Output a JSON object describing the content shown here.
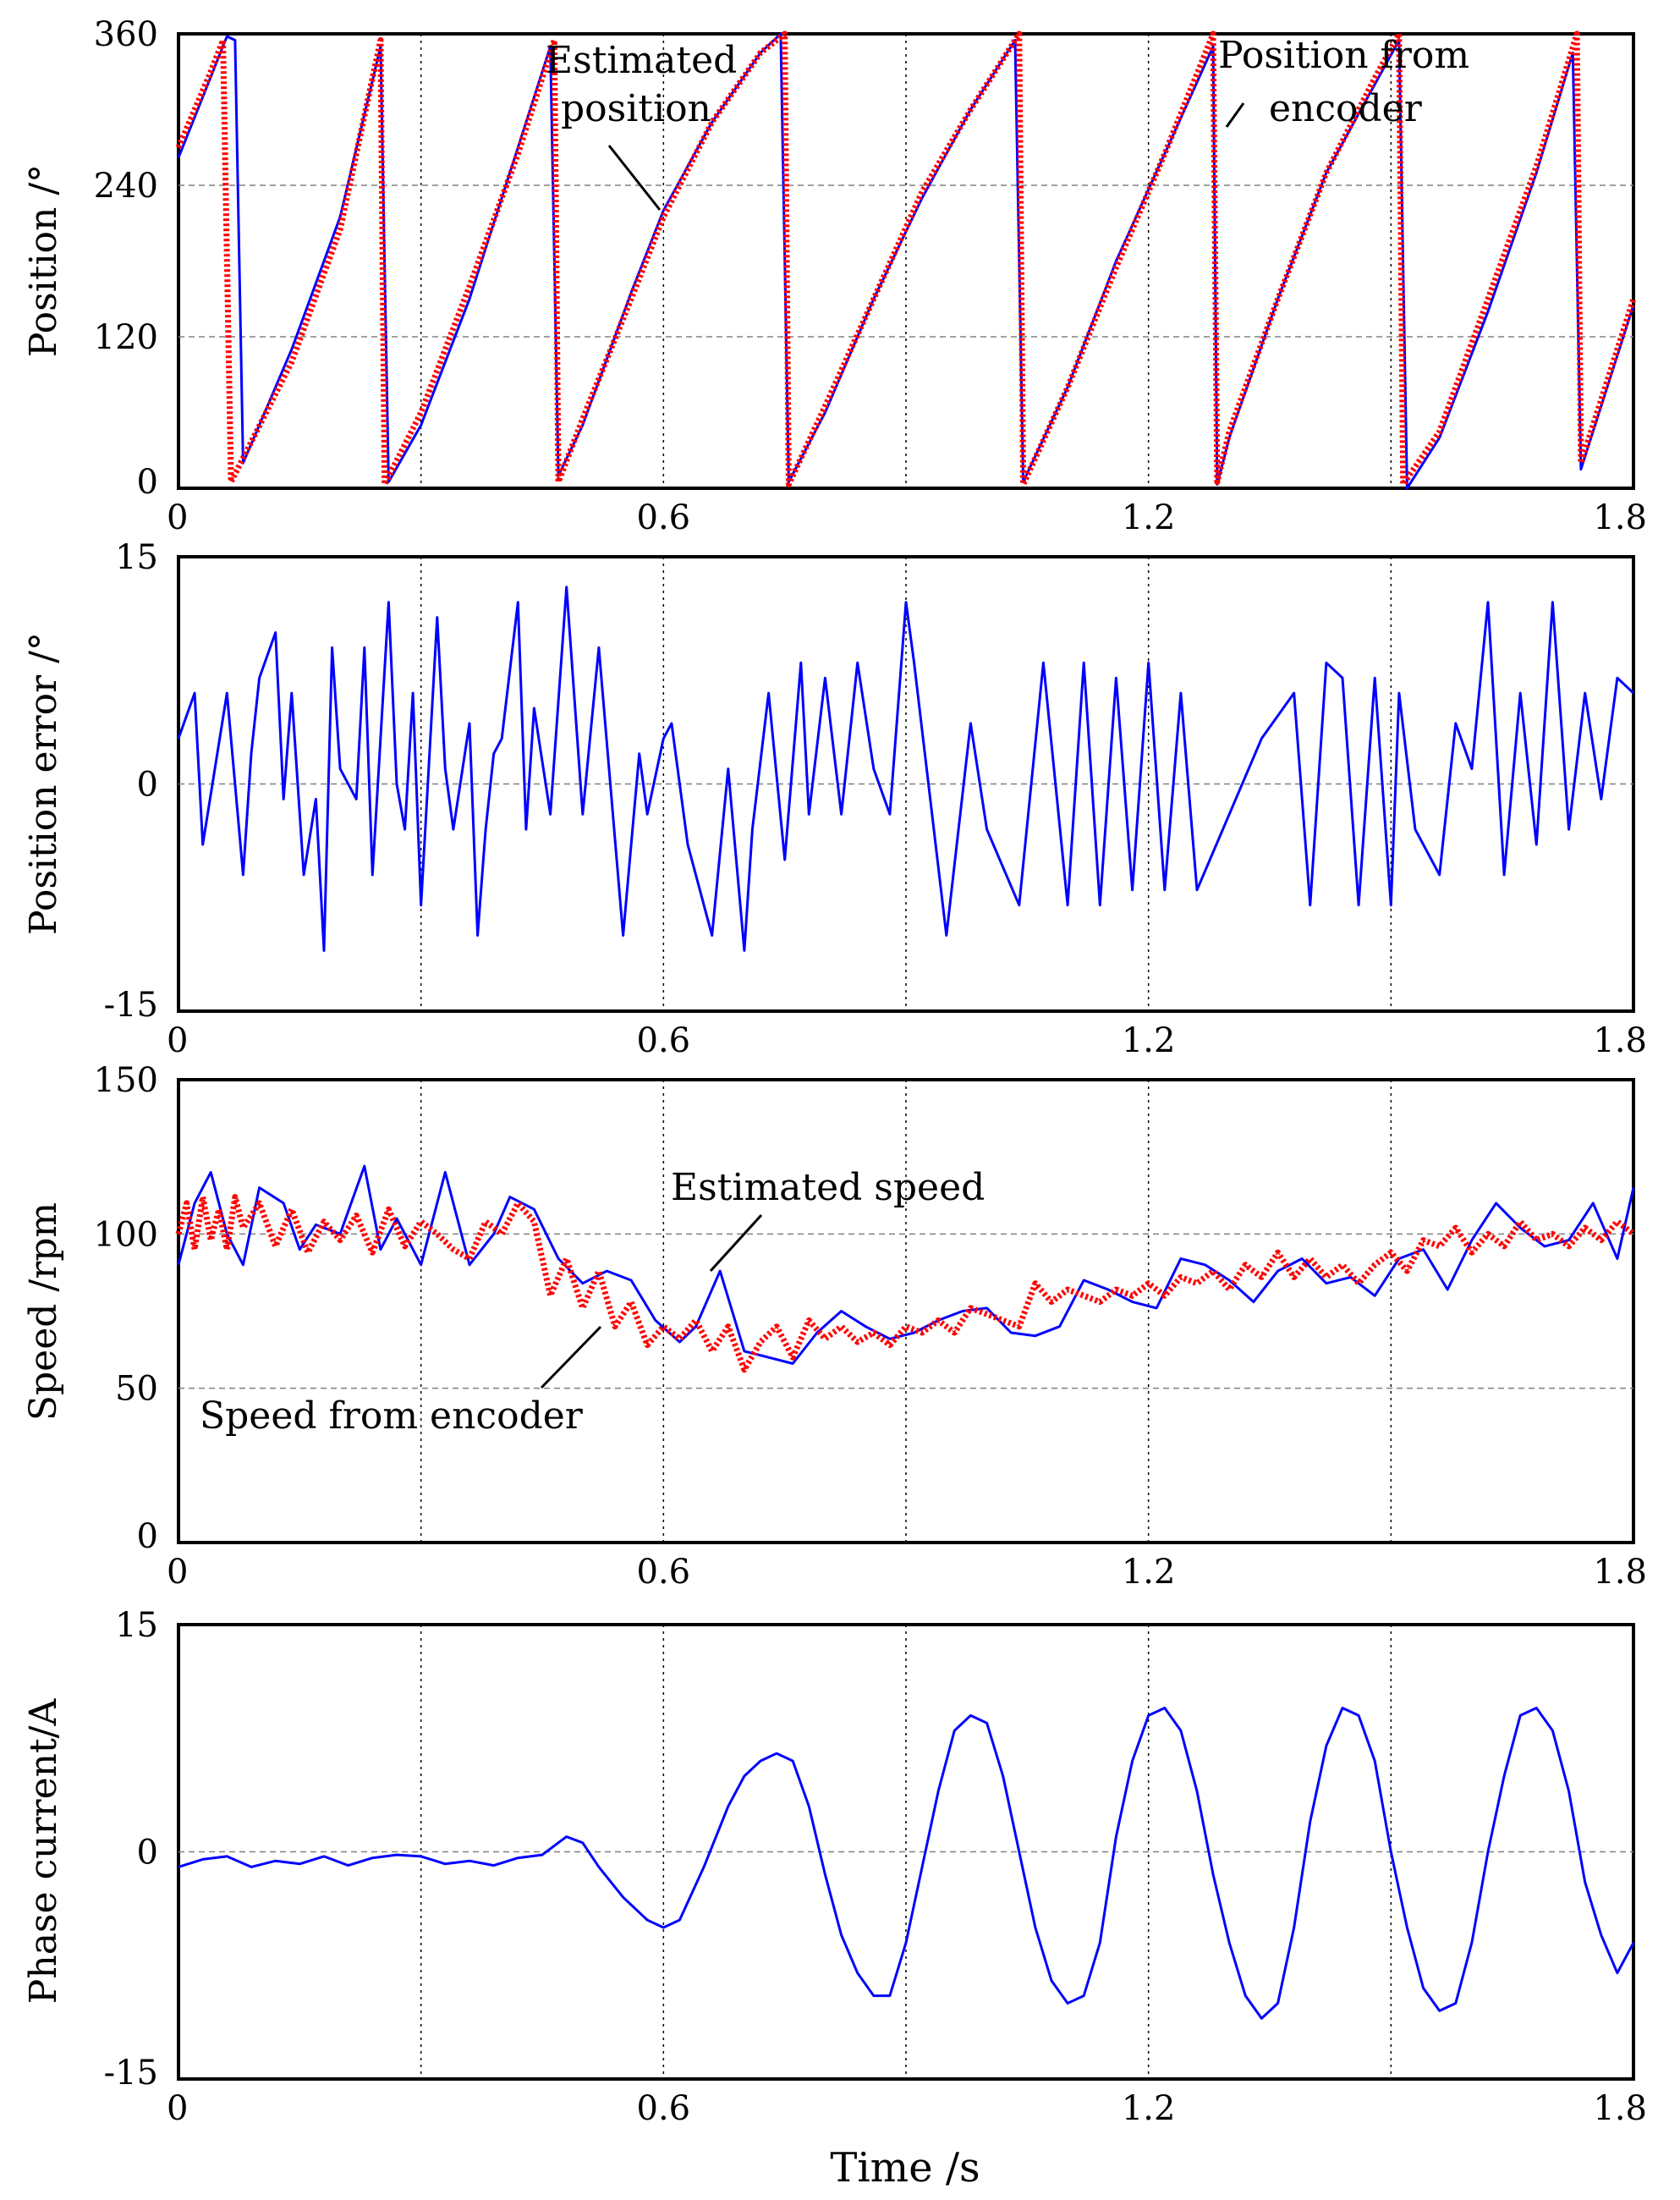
{
  "figure": {
    "xlabel": "Time /s",
    "colors": {
      "estimated": "#0000ff",
      "encoder": "#ff0000",
      "grid": "#808080",
      "frame": "#000000"
    }
  },
  "chart_data": [
    {
      "type": "line",
      "ylabel": "Position /°",
      "xlim": [
        0,
        1.8
      ],
      "ylim": [
        0,
        360
      ],
      "xticks": [
        0,
        0.6,
        1.2,
        1.8
      ],
      "xtick_labels": [
        "0",
        "0.6",
        "1.2",
        "1.8"
      ],
      "yticks": [
        0,
        120,
        240,
        360
      ],
      "ytick_labels": [
        "0",
        "120",
        "240",
        "360"
      ],
      "xgrid": [
        0.3,
        0.6,
        0.9,
        1.2,
        1.5
      ],
      "ygrid": [
        120,
        240
      ],
      "series": [
        {
          "name": "Estimated position",
          "color": "#0000ff",
          "dash": "solid",
          "x": [
            0,
            0.03,
            0.06,
            0.07,
            0.08,
            0.14,
            0.2,
            0.25,
            0.26,
            0.3,
            0.36,
            0.42,
            0.46,
            0.47,
            0.5,
            0.56,
            0.6,
            0.66,
            0.72,
            0.745,
            0.755,
            0.8,
            0.86,
            0.92,
            0.98,
            1.035,
            1.045,
            1.1,
            1.16,
            1.22,
            1.28,
            1.285,
            1.3,
            1.36,
            1.42,
            1.48,
            1.51,
            1.52,
            1.56,
            1.62,
            1.68,
            1.725,
            1.735,
            1.8
          ],
          "values": [
            262,
            310,
            358,
            355,
            20,
            110,
            215,
            350,
            5,
            50,
            150,
            270,
            350,
            10,
            50,
            155,
            220,
            290,
            345,
            360,
            5,
            60,
            150,
            230,
            300,
            355,
            5,
            80,
            180,
            265,
            350,
            3,
            40,
            150,
            250,
            320,
            355,
            0,
            40,
            140,
            250,
            345,
            15,
            145
          ]
        },
        {
          "name": "Position from encoder",
          "color": "#ff0000",
          "dash": "dotted",
          "x": [
            0,
            0.04,
            0.055,
            0.065,
            0.14,
            0.2,
            0.25,
            0.255,
            0.3,
            0.36,
            0.42,
            0.465,
            0.47,
            0.5,
            0.56,
            0.6,
            0.66,
            0.72,
            0.75,
            0.755,
            0.8,
            0.86,
            0.92,
            0.98,
            1.04,
            1.045,
            1.1,
            1.16,
            1.22,
            1.28,
            1.285,
            1.3,
            1.36,
            1.42,
            1.48,
            1.51,
            1.515,
            1.56,
            1.62,
            1.68,
            1.73,
            1.735,
            1.8
          ],
          "values": [
            270,
            330,
            355,
            5,
            100,
            205,
            355,
            3,
            60,
            160,
            265,
            355,
            5,
            55,
            150,
            215,
            290,
            345,
            360,
            3,
            65,
            150,
            235,
            300,
            360,
            3,
            80,
            175,
            265,
            360,
            5,
            45,
            150,
            250,
            325,
            360,
            3,
            45,
            150,
            255,
            360,
            20,
            150
          ]
        }
      ],
      "annotations": [
        {
          "text": [
            "Estimated",
            "position"
          ]
        },
        {
          "text": [
            "Position from",
            "encoder"
          ]
        }
      ]
    },
    {
      "type": "line",
      "ylabel": "Position error /°",
      "xlim": [
        0,
        1.8
      ],
      "ylim": [
        -15,
        15
      ],
      "xticks": [
        0,
        0.6,
        1.2,
        1.8
      ],
      "xtick_labels": [
        "0",
        "0.6",
        "1.2",
        "1.8"
      ],
      "yticks": [
        -15,
        0,
        15
      ],
      "ytick_labels": [
        "-15",
        "0",
        "15"
      ],
      "xgrid": [
        0.3,
        0.6,
        0.9,
        1.2,
        1.5
      ],
      "ygrid": [
        0
      ],
      "series": [
        {
          "name": "Position error",
          "color": "#0000ff",
          "dash": "solid",
          "x": [
            0,
            0.02,
            0.03,
            0.045,
            0.06,
            0.08,
            0.09,
            0.1,
            0.12,
            0.13,
            0.14,
            0.155,
            0.17,
            0.18,
            0.19,
            0.2,
            0.22,
            0.23,
            0.24,
            0.26,
            0.27,
            0.28,
            0.29,
            0.3,
            0.32,
            0.33,
            0.34,
            0.36,
            0.37,
            0.38,
            0.39,
            0.4,
            0.42,
            0.43,
            0.44,
            0.46,
            0.48,
            0.5,
            0.52,
            0.55,
            0.57,
            0.58,
            0.6,
            0.61,
            0.63,
            0.66,
            0.68,
            0.7,
            0.71,
            0.73,
            0.75,
            0.77,
            0.78,
            0.8,
            0.82,
            0.84,
            0.86,
            0.88,
            0.9,
            0.91,
            0.95,
            0.98,
            1.0,
            1.04,
            1.07,
            1.1,
            1.12,
            1.14,
            1.16,
            1.18,
            1.2,
            1.22,
            1.24,
            1.26,
            1.3,
            1.34,
            1.38,
            1.4,
            1.42,
            1.44,
            1.46,
            1.48,
            1.5,
            1.51,
            1.53,
            1.56,
            1.58,
            1.6,
            1.62,
            1.64,
            1.66,
            1.68,
            1.7,
            1.72,
            1.74,
            1.76,
            1.78,
            1.8
          ],
          "values": [
            3,
            6,
            -4,
            1,
            6,
            -6,
            2,
            7,
            10,
            -1,
            6,
            -6,
            -1,
            -11,
            9,
            1,
            -1,
            9,
            -6,
            12,
            0,
            -3,
            6,
            -8,
            11,
            1,
            -3,
            4,
            -10,
            -3,
            2,
            3,
            12,
            -3,
            5,
            -2,
            13,
            -2,
            9,
            -10,
            2,
            -2,
            3,
            4,
            -4,
            -10,
            1,
            -11,
            -3,
            6,
            -5,
            8,
            -2,
            7,
            -2,
            8,
            1,
            -2,
            12,
            8,
            -10,
            4,
            -3,
            -8,
            8,
            -8,
            8,
            -8,
            7,
            -7,
            8,
            -7,
            6,
            -7,
            -2,
            3,
            6,
            -8,
            8,
            7,
            -8,
            7,
            -8,
            6,
            -3,
            -6,
            4,
            1,
            12,
            -6,
            6,
            -4,
            12,
            -3,
            6,
            -1,
            7,
            6
          ]
        }
      ]
    },
    {
      "type": "line",
      "ylabel": "Speed /rpm",
      "xlim": [
        0,
        1.8
      ],
      "ylim": [
        0,
        150
      ],
      "xticks": [
        0,
        0.6,
        1.2,
        1.8
      ],
      "xtick_labels": [
        "0",
        "0.6",
        "1.2",
        "1.8"
      ],
      "yticks": [
        0,
        50,
        100,
        150
      ],
      "ytick_labels": [
        "0",
        "50",
        "100",
        "150"
      ],
      "xgrid": [
        0.3,
        0.6,
        0.9,
        1.2,
        1.5
      ],
      "ygrid": [
        50,
        100
      ],
      "series": [
        {
          "name": "Estimated speed",
          "color": "#0000ff",
          "dash": "solid",
          "x": [
            0,
            0.02,
            0.04,
            0.06,
            0.08,
            0.1,
            0.13,
            0.15,
            0.17,
            0.2,
            0.23,
            0.25,
            0.27,
            0.3,
            0.33,
            0.36,
            0.39,
            0.41,
            0.44,
            0.47,
            0.5,
            0.53,
            0.56,
            0.59,
            0.62,
            0.64,
            0.67,
            0.7,
            0.73,
            0.76,
            0.79,
            0.82,
            0.85,
            0.88,
            0.91,
            0.94,
            0.97,
            1.0,
            1.03,
            1.06,
            1.09,
            1.12,
            1.15,
            1.18,
            1.21,
            1.24,
            1.27,
            1.3,
            1.33,
            1.36,
            1.39,
            1.42,
            1.45,
            1.48,
            1.51,
            1.54,
            1.57,
            1.6,
            1.63,
            1.66,
            1.69,
            1.72,
            1.75,
            1.78,
            1.8
          ],
          "values": [
            90,
            110,
            120,
            100,
            90,
            115,
            110,
            95,
            103,
            100,
            122,
            95,
            105,
            90,
            120,
            90,
            100,
            112,
            108,
            92,
            84,
            88,
            85,
            72,
            65,
            70,
            88,
            62,
            60,
            58,
            68,
            75,
            70,
            66,
            68,
            72,
            75,
            76,
            68,
            67,
            70,
            85,
            82,
            78,
            76,
            92,
            90,
            85,
            78,
            88,
            92,
            84,
            86,
            80,
            92,
            95,
            82,
            98,
            110,
            102,
            96,
            98,
            110,
            92,
            115
          ]
        },
        {
          "name": "Speed from encoder",
          "color": "#ff0000",
          "dash": "dotted",
          "x": [
            0,
            0.01,
            0.02,
            0.03,
            0.04,
            0.05,
            0.06,
            0.07,
            0.08,
            0.1,
            0.12,
            0.14,
            0.16,
            0.18,
            0.2,
            0.22,
            0.24,
            0.26,
            0.28,
            0.3,
            0.32,
            0.34,
            0.36,
            0.38,
            0.4,
            0.42,
            0.44,
            0.46,
            0.48,
            0.5,
            0.52,
            0.54,
            0.56,
            0.58,
            0.6,
            0.62,
            0.64,
            0.66,
            0.68,
            0.7,
            0.72,
            0.74,
            0.76,
            0.78,
            0.8,
            0.82,
            0.84,
            0.86,
            0.88,
            0.9,
            0.92,
            0.94,
            0.96,
            0.98,
            1.0,
            1.02,
            1.04,
            1.06,
            1.08,
            1.1,
            1.12,
            1.14,
            1.16,
            1.18,
            1.2,
            1.22,
            1.24,
            1.26,
            1.28,
            1.3,
            1.32,
            1.34,
            1.36,
            1.38,
            1.4,
            1.42,
            1.44,
            1.46,
            1.48,
            1.5,
            1.52,
            1.54,
            1.56,
            1.58,
            1.6,
            1.62,
            1.64,
            1.66,
            1.68,
            1.7,
            1.72,
            1.74,
            1.76,
            1.78,
            1.8
          ],
          "values": [
            100,
            110,
            95,
            112,
            98,
            108,
            95,
            112,
            102,
            110,
            96,
            108,
            94,
            104,
            98,
            106,
            94,
            108,
            96,
            104,
            100,
            95,
            92,
            104,
            100,
            110,
            104,
            80,
            92,
            76,
            88,
            70,
            78,
            64,
            70,
            66,
            72,
            62,
            70,
            56,
            65,
            70,
            60,
            72,
            66,
            70,
            65,
            68,
            64,
            70,
            68,
            72,
            68,
            76,
            74,
            72,
            70,
            84,
            78,
            82,
            80,
            78,
            82,
            80,
            84,
            80,
            86,
            84,
            88,
            82,
            90,
            86,
            94,
            86,
            92,
            86,
            90,
            84,
            90,
            94,
            88,
            98,
            96,
            102,
            94,
            100,
            96,
            104,
            98,
            100,
            96,
            102,
            98,
            104,
            100
          ]
        }
      ],
      "annotations": [
        {
          "text": [
            "Estimated speed"
          ]
        },
        {
          "text": [
            "Speed from encoder"
          ]
        }
      ]
    },
    {
      "type": "line",
      "ylabel": "Phase current/A",
      "xlim": [
        0,
        1.8
      ],
      "ylim": [
        -15,
        15
      ],
      "xticks": [
        0,
        0.6,
        1.2,
        1.8
      ],
      "xtick_labels": [
        "0",
        "0.6",
        "1.2",
        "1.8"
      ],
      "yticks": [
        -15,
        0,
        15
      ],
      "ytick_labels": [
        "-15",
        "0",
        "15"
      ],
      "xgrid": [
        0.3,
        0.6,
        0.9,
        1.2,
        1.5
      ],
      "ygrid": [
        0
      ],
      "series": [
        {
          "name": "Phase current",
          "color": "#0000ff",
          "dash": "solid",
          "x": [
            0,
            0.03,
            0.06,
            0.09,
            0.12,
            0.15,
            0.18,
            0.21,
            0.24,
            0.27,
            0.3,
            0.33,
            0.36,
            0.39,
            0.42,
            0.45,
            0.48,
            0.5,
            0.52,
            0.55,
            0.58,
            0.6,
            0.62,
            0.65,
            0.68,
            0.7,
            0.72,
            0.74,
            0.76,
            0.78,
            0.8,
            0.82,
            0.84,
            0.86,
            0.88,
            0.9,
            0.92,
            0.94,
            0.96,
            0.98,
            1.0,
            1.02,
            1.04,
            1.06,
            1.08,
            1.1,
            1.12,
            1.14,
            1.16,
            1.18,
            1.2,
            1.22,
            1.24,
            1.26,
            1.28,
            1.3,
            1.32,
            1.34,
            1.36,
            1.38,
            1.4,
            1.42,
            1.44,
            1.46,
            1.48,
            1.5,
            1.52,
            1.54,
            1.56,
            1.58,
            1.6,
            1.62,
            1.64,
            1.66,
            1.68,
            1.7,
            1.72,
            1.74,
            1.76,
            1.78,
            1.8
          ],
          "values": [
            -1,
            -0.5,
            -0.3,
            -1,
            -0.6,
            -0.8,
            -0.3,
            -0.9,
            -0.4,
            -0.2,
            -0.3,
            -0.8,
            -0.6,
            -0.9,
            -0.4,
            -0.2,
            1,
            0.6,
            -1,
            -3,
            -4.5,
            -5,
            -4.5,
            -1,
            3,
            5,
            6,
            6.5,
            6,
            3,
            -1.5,
            -5.5,
            -8,
            -9.5,
            -9.5,
            -6,
            -1,
            4,
            8,
            9,
            8.5,
            5,
            0,
            -5,
            -8.5,
            -10,
            -9.5,
            -6,
            1,
            6,
            9,
            9.5,
            8,
            4,
            -1.5,
            -6,
            -9.5,
            -11,
            -10,
            -5,
            2,
            7,
            9.5,
            9,
            6,
            0,
            -5,
            -9,
            -10.5,
            -10,
            -6,
            0,
            5,
            9,
            9.5,
            8,
            4,
            -2,
            -5.5,
            -8,
            -6
          ]
        }
      ]
    }
  ]
}
